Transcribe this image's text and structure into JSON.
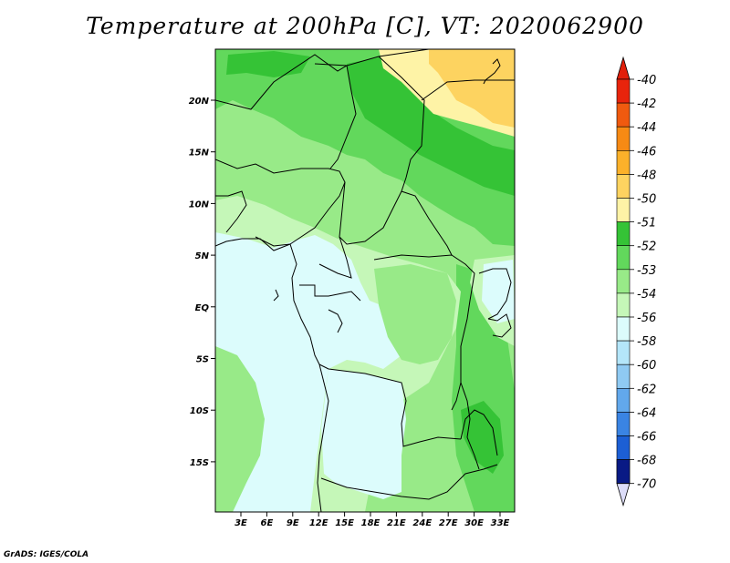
{
  "title": "Temperature at 200hPa [C], VT: 2020062900",
  "credit": "GrADS: IGES/COLA",
  "lon_labels": [
    "3E",
    "6E",
    "9E",
    "12E",
    "15E",
    "18E",
    "21E",
    "24E",
    "27E",
    "30E",
    "33E"
  ],
  "lat_labels": [
    "20N",
    "15N",
    "10N",
    "5N",
    "EQ",
    "5S",
    "10S",
    "15S"
  ],
  "colorbar": {
    "labels": [
      "-40",
      "-42",
      "-44",
      "-46",
      "-48",
      "-50",
      "-51",
      "-52",
      "-53",
      "-54",
      "-56",
      "-58",
      "-60",
      "-62",
      "-64",
      "-66",
      "-68",
      "-70"
    ],
    "colors": [
      "#e8240c",
      "#f05a0f",
      "#f78a14",
      "#fbb12a",
      "#fdd360",
      "#fef3a6",
      "#35c336",
      "#62d85c",
      "#98ea88",
      "#c5f7b8",
      "#dcfcfc",
      "#b4e6fa",
      "#8fcaf3",
      "#62a8ec",
      "#3a84e3",
      "#1c5fd4",
      "#0d3fb5",
      "#091a85"
    ],
    "top_color": "#e11f0a",
    "bottom_color": "#dcdcf8"
  },
  "map_colors": {
    "level_minus51": "#35c336",
    "level_minus52": "#62d85c",
    "level_minus53": "#98ea88",
    "level_minus54": "#c5f7b8",
    "level_minus56": "#dcfcfc",
    "level_minus48": "#fdd360",
    "level_minus50": "#fef3a6"
  }
}
